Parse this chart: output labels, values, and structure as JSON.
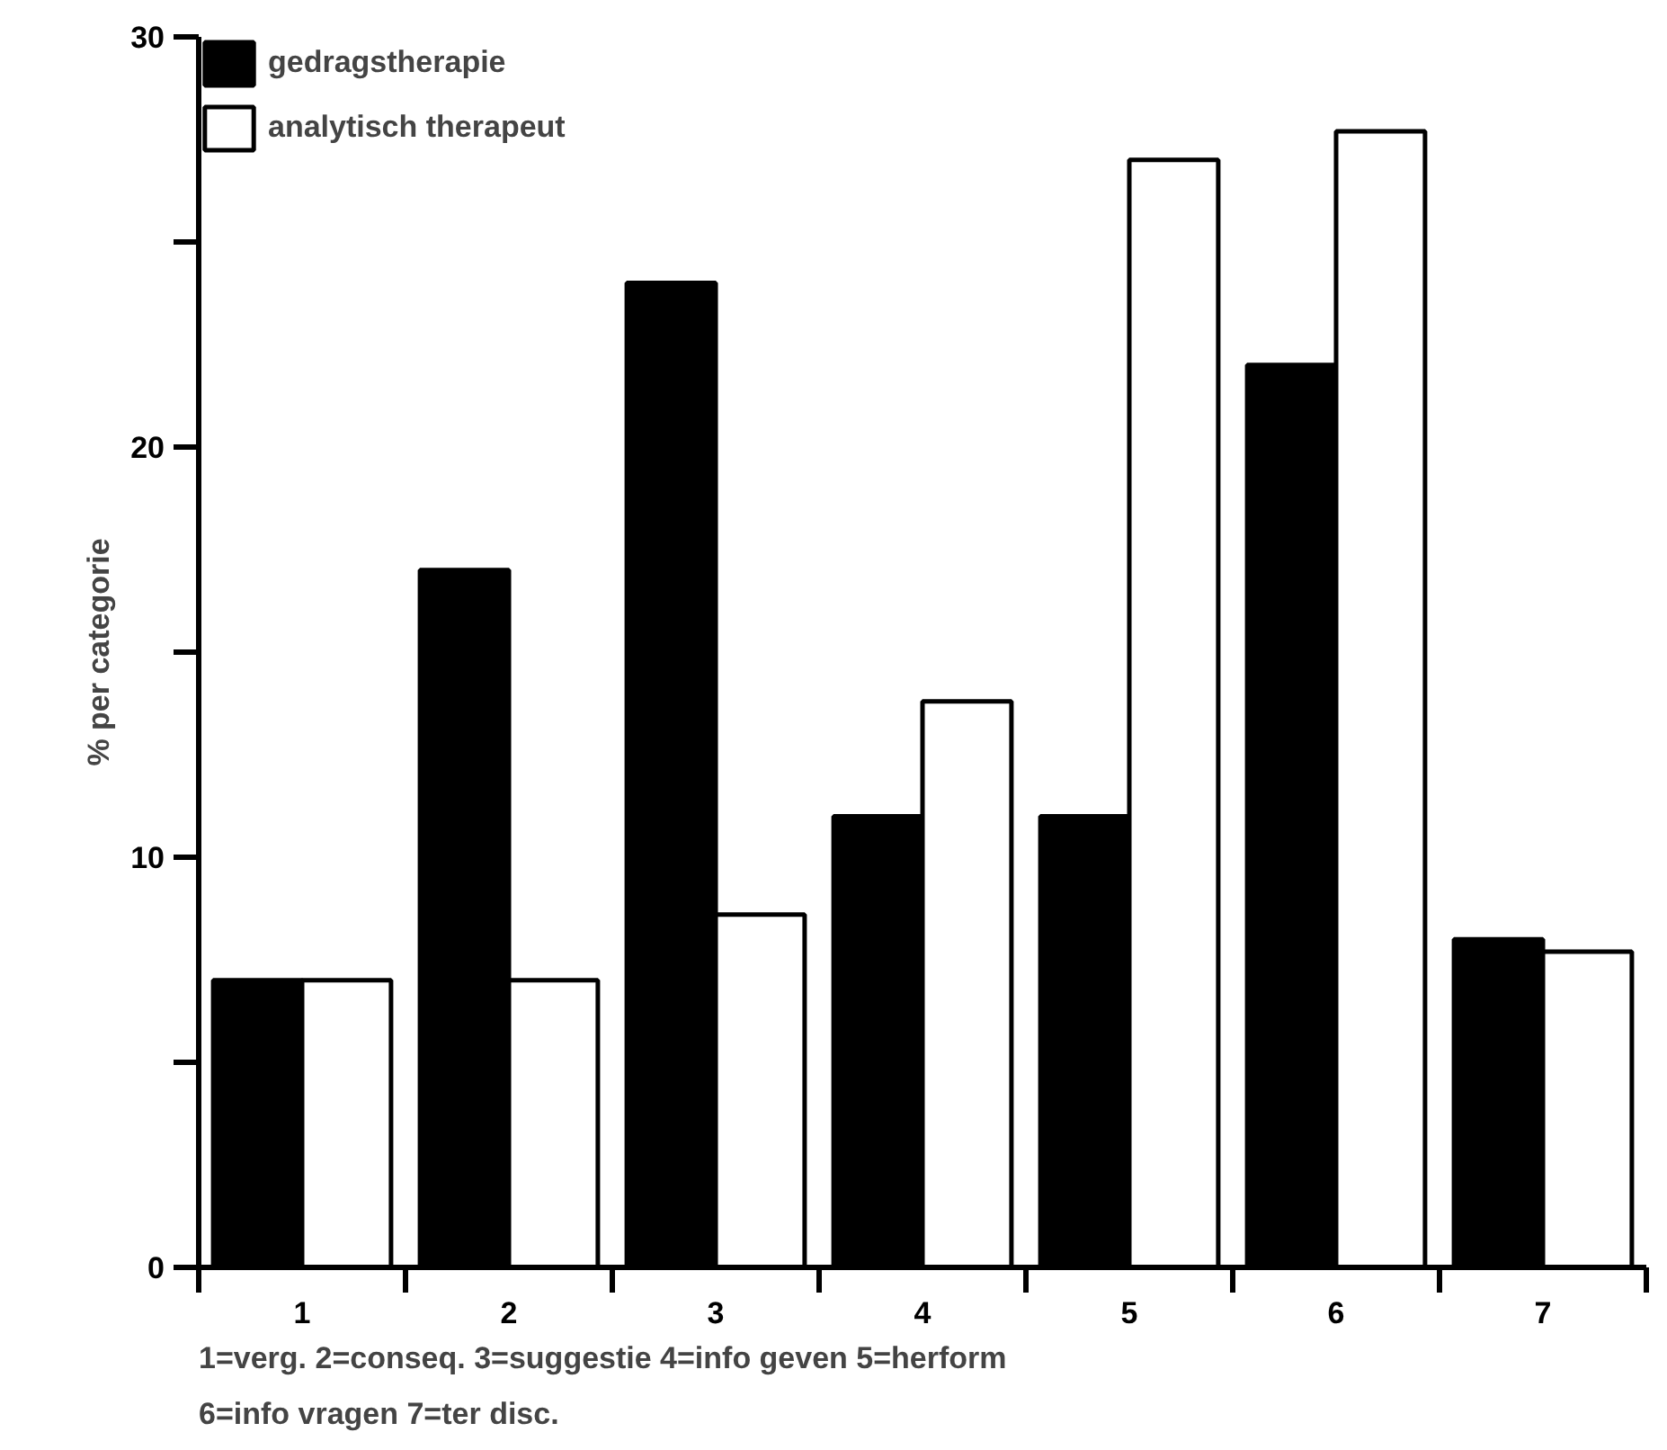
{
  "chart_data": {
    "type": "bar",
    "ylabel": "% per categorie",
    "categories": [
      "1",
      "2",
      "3",
      "4",
      "5",
      "6",
      "7"
    ],
    "series": [
      {
        "name": "gedragstherapie",
        "color": "#000000",
        "values": [
          7,
          17,
          24,
          11,
          11,
          22,
          8
        ]
      },
      {
        "name": "analytisch therapeut",
        "color": "#ffffff",
        "values": [
          7,
          7,
          8.6,
          13.8,
          27,
          27.7,
          7.7
        ]
      }
    ],
    "ylim": [
      0,
      30
    ],
    "yticks": [
      0,
      {
        "value": 5,
        "label": null
      },
      10,
      {
        "value": 15,
        "label": null
      },
      20,
      {
        "value": 25,
        "label": null
      },
      30
    ],
    "grid": false,
    "legend": "top left",
    "annotations": [
      "1=verg.  2=conseq.  3=suggestie  4=info geven  5=herform",
      "6=info vragen  7=ter disc."
    ]
  }
}
